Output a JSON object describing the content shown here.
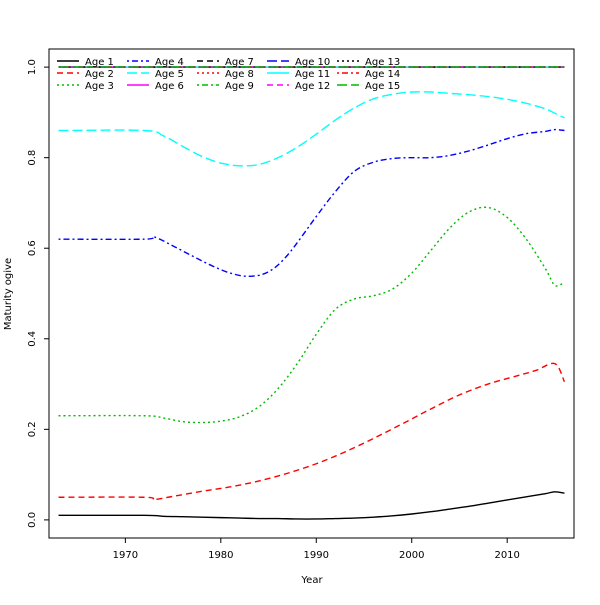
{
  "chart_data": {
    "type": "line",
    "title": "",
    "xlabel": "Year",
    "ylabel": "Maturity ogive",
    "xlim": [
      1962,
      2017
    ],
    "ylim": [
      -0.04,
      1.04
    ],
    "grid": false,
    "legend_position": "top-left",
    "x_ticks": [
      1970,
      1980,
      1990,
      2000,
      2010
    ],
    "x_tick_labels": [
      "1970",
      "1980",
      "1990",
      "2000",
      "2010"
    ],
    "y_ticks": [
      0.0,
      0.2,
      0.4,
      0.6,
      0.8,
      1.0
    ],
    "y_tick_labels": [
      "0.0",
      "0.2",
      "0.4",
      "0.6",
      "0.8",
      "1.0"
    ],
    "series": [
      {
        "name": "Age 1",
        "color": "#000000",
        "dash": "solid",
        "x": [
          1963,
          1972,
          1974,
          1976,
          1978,
          1980,
          1982,
          1984,
          1986,
          1988,
          1990,
          1992,
          1994,
          1996,
          1998,
          2000,
          2002,
          2004,
          2006,
          2008,
          2010,
          2012,
          2014,
          2015,
          2016
        ],
        "y": [
          0.01,
          0.01,
          0.008,
          0.007,
          0.006,
          0.005,
          0.004,
          0.003,
          0.003,
          0.002,
          0.002,
          0.003,
          0.004,
          0.006,
          0.009,
          0.013,
          0.018,
          0.024,
          0.03,
          0.037,
          0.044,
          0.051,
          0.058,
          0.062,
          0.059
        ]
      },
      {
        "name": "Age 2",
        "color": "#ff0000",
        "dash": "dashed",
        "x": [
          1963,
          1972,
          1973,
          1975,
          1978,
          1981,
          1984,
          1987,
          1990,
          1993,
          1996,
          1999,
          2002,
          2005,
          2008,
          2011,
          2013,
          2015,
          2016
        ],
        "y": [
          0.05,
          0.05,
          0.045,
          0.052,
          0.063,
          0.073,
          0.086,
          0.103,
          0.124,
          0.15,
          0.18,
          0.212,
          0.245,
          0.276,
          0.3,
          0.318,
          0.33,
          0.345,
          0.305
        ]
      },
      {
        "name": "Age 3",
        "color": "#00bb00",
        "dash": "dotted",
        "x": [
          1963,
          1972,
          1974,
          1976,
          1978,
          1980,
          1982,
          1984,
          1986,
          1988,
          1990,
          1992,
          1994,
          1996,
          1998,
          2000,
          2002,
          2004,
          2006,
          2008,
          2010,
          2012,
          2014,
          2015,
          2016
        ],
        "y": [
          0.23,
          0.23,
          0.225,
          0.217,
          0.215,
          0.218,
          0.228,
          0.25,
          0.29,
          0.345,
          0.41,
          0.465,
          0.488,
          0.495,
          0.51,
          0.545,
          0.595,
          0.645,
          0.68,
          0.69,
          0.668,
          0.62,
          0.555,
          0.518,
          0.525
        ]
      },
      {
        "name": "Age 4",
        "color": "#0000ff",
        "dash": "dotdash",
        "x": [
          1963,
          1972,
          1973,
          1975,
          1977,
          1979,
          1981,
          1983,
          1985,
          1987,
          1990,
          1992,
          1994,
          1996,
          1998,
          2000,
          2002,
          2004,
          2006,
          2008,
          2010,
          2012,
          2014,
          2015,
          2016
        ],
        "y": [
          0.62,
          0.62,
          0.625,
          0.605,
          0.583,
          0.562,
          0.545,
          0.538,
          0.548,
          0.585,
          0.67,
          0.725,
          0.77,
          0.79,
          0.798,
          0.8,
          0.8,
          0.805,
          0.815,
          0.828,
          0.842,
          0.853,
          0.858,
          0.862,
          0.86
        ]
      },
      {
        "name": "Age 5",
        "color": "#00ffff",
        "dash": "longdash",
        "x": [
          1963,
          1972,
          1974,
          1976,
          1978,
          1980,
          1982,
          1984,
          1986,
          1988,
          1990,
          1992,
          1994,
          1996,
          1998,
          2000,
          2002,
          2004,
          2006,
          2008,
          2010,
          2012,
          2014,
          2015,
          2016
        ],
        "y": [
          0.86,
          0.86,
          0.848,
          0.825,
          0.803,
          0.788,
          0.782,
          0.785,
          0.8,
          0.823,
          0.852,
          0.883,
          0.91,
          0.93,
          0.94,
          0.945,
          0.945,
          0.942,
          0.939,
          0.935,
          0.929,
          0.92,
          0.908,
          0.898,
          0.888
        ]
      },
      {
        "name": "Age 6",
        "color": "#ff00ff",
        "dash": "solid",
        "x": [
          1963,
          2016
        ],
        "y": [
          1.0,
          1.0
        ]
      },
      {
        "name": "Age 7",
        "color": "#000000",
        "dash": "dashed",
        "x": [
          1963,
          2016
        ],
        "y": [
          1.0,
          1.0
        ]
      },
      {
        "name": "Age 8",
        "color": "#ff0000",
        "dash": "dotted",
        "x": [
          1963,
          2016
        ],
        "y": [
          1.0,
          1.0
        ]
      },
      {
        "name": "Age 9",
        "color": "#00bb00",
        "dash": "dotdash",
        "x": [
          1963,
          2016
        ],
        "y": [
          1.0,
          1.0
        ]
      },
      {
        "name": "Age 10",
        "color": "#0000ff",
        "dash": "longdash",
        "x": [
          1963,
          2016
        ],
        "y": [
          1.0,
          1.0
        ]
      },
      {
        "name": "Age 11",
        "color": "#00ffff",
        "dash": "solid",
        "x": [
          1963,
          2016
        ],
        "y": [
          1.0,
          1.0
        ]
      },
      {
        "name": "Age 12",
        "color": "#ff00ff",
        "dash": "dashed",
        "x": [
          1963,
          2016
        ],
        "y": [
          1.0,
          1.0
        ]
      },
      {
        "name": "Age 13",
        "color": "#000000",
        "dash": "dotted",
        "x": [
          1963,
          2016
        ],
        "y": [
          1.0,
          1.0
        ]
      },
      {
        "name": "Age 14",
        "color": "#ff0000",
        "dash": "dotdash",
        "x": [
          1963,
          2016
        ],
        "y": [
          1.0,
          1.0
        ]
      },
      {
        "name": "Age 15",
        "color": "#00bb00",
        "dash": "longdash",
        "x": [
          1963,
          2016
        ],
        "y": [
          1.0,
          1.0
        ]
      }
    ]
  }
}
